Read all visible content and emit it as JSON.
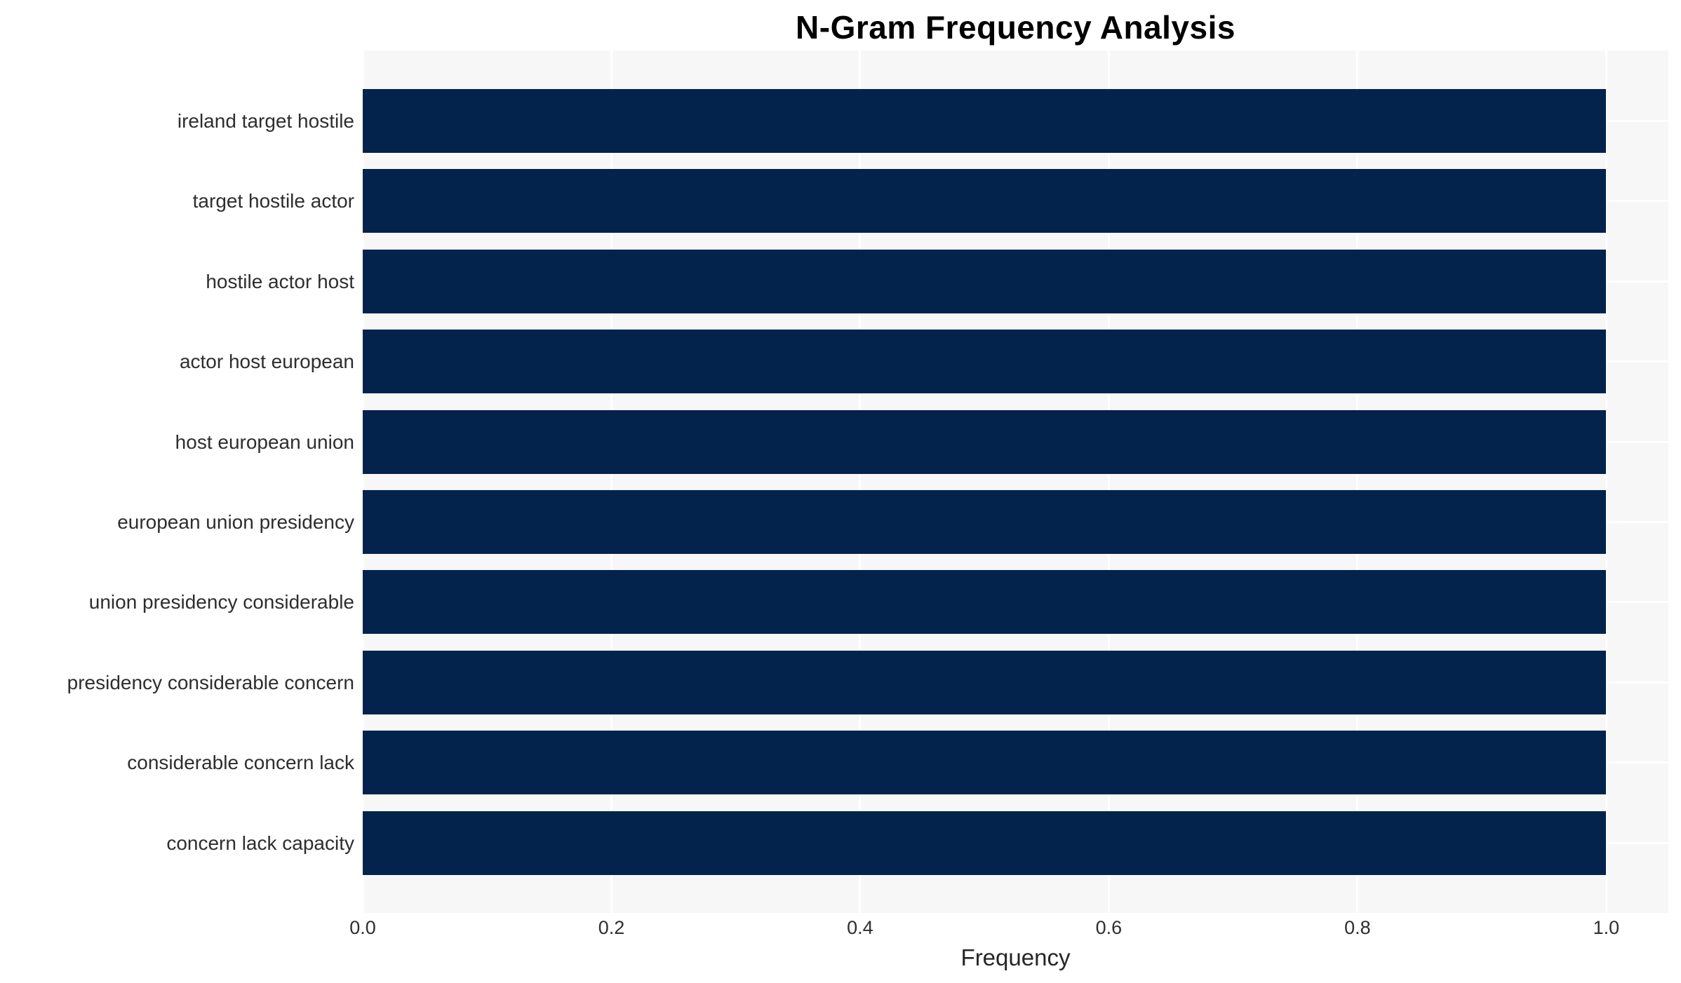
{
  "chart_data": {
    "type": "bar",
    "orientation": "horizontal",
    "title": "N-Gram Frequency Analysis",
    "xlabel": "Frequency",
    "ylabel": "",
    "categories": [
      "ireland target hostile",
      "target hostile actor",
      "hostile actor host",
      "actor host european",
      "host european union",
      "european union presidency",
      "union presidency considerable",
      "presidency considerable concern",
      "considerable concern lack",
      "concern lack capacity"
    ],
    "values": [
      1.0,
      1.0,
      1.0,
      1.0,
      1.0,
      1.0,
      1.0,
      1.0,
      1.0,
      1.0
    ],
    "xticks": [
      0.0,
      0.2,
      0.4,
      0.6,
      0.8,
      1.0
    ],
    "xtick_labels": [
      "0.0",
      "0.2",
      "0.4",
      "0.6",
      "0.8",
      "1.0"
    ],
    "xlim": [
      0.0,
      1.05
    ],
    "grid": true,
    "legend": false,
    "colors": {
      "bar": "#03234d",
      "plot_background": "#f7f7f7",
      "gridline": "#ffffff",
      "title_text": "#000000",
      "label_text": "#2e2e2e"
    }
  }
}
